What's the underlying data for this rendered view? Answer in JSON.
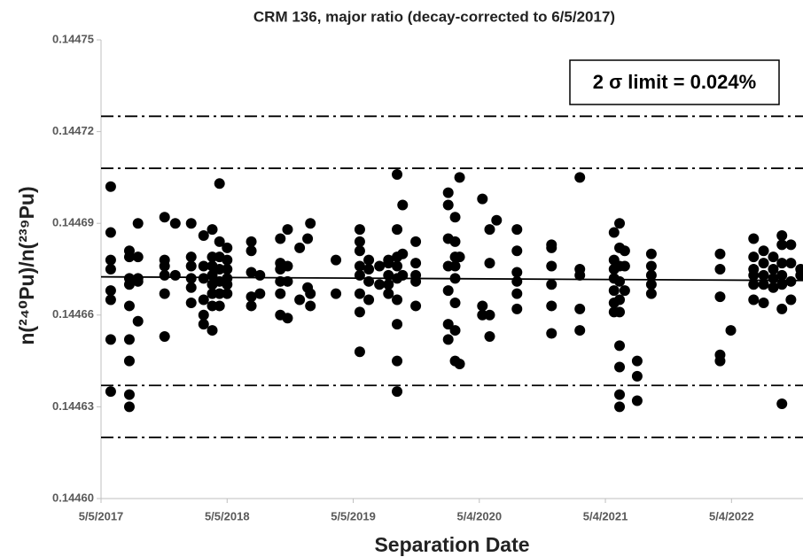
{
  "chart_data": {
    "type": "scatter",
    "title": "CRM 136, major ratio (decay-corrected to 6/5/2017)",
    "xlabel": "Separation Date",
    "ylabel": "n(²⁴⁰Pu)/n(²³⁹Pu)",
    "annotation": "2 σ limit = 0.024%",
    "color": "#000000",
    "xlim": [
      "2017-05-05",
      "2022-11-27"
    ],
    "xticks": [
      {
        "value": "2017-05-05",
        "label": "5/5/2017"
      },
      {
        "value": "2018-05-05",
        "label": "5/5/2018"
      },
      {
        "value": "2019-05-05",
        "label": "5/5/2019"
      },
      {
        "value": "2020-05-04",
        "label": "5/4/2020"
      },
      {
        "value": "2021-05-04",
        "label": "5/4/2021"
      },
      {
        "value": "2022-05-04",
        "label": "5/4/2022"
      }
    ],
    "ylim": [
      0.1446,
      0.14475
    ],
    "yticks": [
      {
        "value": 0.1446,
        "label": "0.14460"
      },
      0.14463,
      0.14466,
      0.14469,
      0.14472,
      0.14475
    ],
    "reference_lines": [
      0.144725,
      0.144708,
      0.144637,
      0.14462
    ],
    "trend_values": [
      0.1446725,
      0.1446713
    ],
    "x": [
      "2017-06-02",
      "2017-06-02",
      "2017-06-02",
      "2017-06-02",
      "2017-06-02",
      "2017-06-02",
      "2017-06-02",
      "2017-06-02",
      "2017-07-26",
      "2017-07-26",
      "2017-07-26",
      "2017-07-26",
      "2017-07-26",
      "2017-07-26",
      "2017-07-26",
      "2017-07-26",
      "2017-07-26",
      "2017-08-20",
      "2017-08-20",
      "2017-08-20",
      "2017-08-20",
      "2017-08-20",
      "2017-11-05",
      "2017-11-05",
      "2017-11-05",
      "2017-11-05",
      "2017-11-05",
      "2017-11-05",
      "2017-12-06",
      "2017-12-06",
      "2018-01-21",
      "2018-01-21",
      "2018-01-21",
      "2018-01-21",
      "2018-01-21",
      "2018-01-21",
      "2018-02-26",
      "2018-02-26",
      "2018-02-26",
      "2018-02-26",
      "2018-02-26",
      "2018-02-26",
      "2018-03-23",
      "2018-03-23",
      "2018-03-23",
      "2018-03-23",
      "2018-03-23",
      "2018-03-23",
      "2018-03-23",
      "2018-03-23",
      "2018-04-13",
      "2018-04-13",
      "2018-04-13",
      "2018-04-13",
      "2018-04-13",
      "2018-04-13",
      "2018-04-13",
      "2018-05-05",
      "2018-05-05",
      "2018-05-05",
      "2018-05-05",
      "2018-05-05",
      "2018-05-05",
      "2018-07-14",
      "2018-07-14",
      "2018-07-14",
      "2018-07-14",
      "2018-07-14",
      "2018-08-08",
      "2018-08-08",
      "2018-10-06",
      "2018-10-06",
      "2018-10-06",
      "2018-10-06",
      "2018-10-06",
      "2018-10-06",
      "2018-10-27",
      "2018-10-27",
      "2018-10-27",
      "2018-10-27",
      "2018-12-01",
      "2018-12-01",
      "2018-12-24",
      "2018-12-24",
      "2019-01-01",
      "2019-01-01",
      "2019-01-01",
      "2019-03-16",
      "2019-03-16",
      "2019-05-24",
      "2019-05-24",
      "2019-05-24",
      "2019-05-24",
      "2019-05-24",
      "2019-05-24",
      "2019-05-24",
      "2019-05-24",
      "2019-06-19",
      "2019-06-19",
      "2019-06-19",
      "2019-06-19",
      "2019-07-20",
      "2019-07-20",
      "2019-08-15",
      "2019-08-15",
      "2019-08-15",
      "2019-08-15",
      "2019-08-15",
      "2019-09-09",
      "2019-09-09",
      "2019-09-09",
      "2019-09-09",
      "2019-09-09",
      "2019-09-09",
      "2019-09-09",
      "2019-09-09",
      "2019-09-09",
      "2019-09-25",
      "2019-09-25",
      "2019-09-25",
      "2019-11-02",
      "2019-11-02",
      "2019-11-02",
      "2019-11-02",
      "2019-11-02",
      "2020-02-04",
      "2020-02-04",
      "2020-02-04",
      "2020-02-04",
      "2020-02-04",
      "2020-02-04",
      "2020-02-04",
      "2020-02-24",
      "2020-02-24",
      "2020-02-24",
      "2020-02-24",
      "2020-02-24",
      "2020-02-24",
      "2020-02-24",
      "2020-02-24",
      "2020-03-08",
      "2020-03-08",
      "2020-03-08",
      "2020-05-13",
      "2020-05-13",
      "2020-05-13",
      "2020-06-03",
      "2020-06-03",
      "2020-06-03",
      "2020-06-03",
      "2020-06-23",
      "2020-08-21",
      "2020-08-21",
      "2020-08-21",
      "2020-08-21",
      "2020-08-21",
      "2020-08-21",
      "2020-11-29",
      "2020-11-29",
      "2020-11-29",
      "2020-11-29",
      "2020-11-29",
      "2020-11-29",
      "2021-02-19",
      "2021-02-19",
      "2021-02-19",
      "2021-02-19",
      "2021-02-19",
      "2021-05-29",
      "2021-05-29",
      "2021-05-29",
      "2021-05-29",
      "2021-05-29",
      "2021-05-29",
      "2021-05-29",
      "2021-06-14",
      "2021-06-14",
      "2021-06-14",
      "2021-06-14",
      "2021-06-14",
      "2021-06-14",
      "2021-06-14",
      "2021-06-14",
      "2021-06-14",
      "2021-06-14",
      "2021-06-29",
      "2021-06-29",
      "2021-06-29",
      "2021-08-04",
      "2021-08-04",
      "2021-08-04",
      "2021-09-14",
      "2021-09-14",
      "2021-09-14",
      "2021-09-14",
      "2021-09-14",
      "2022-04-01",
      "2022-04-01",
      "2022-04-01",
      "2022-04-01",
      "2022-04-01",
      "2022-05-02",
      "2022-07-07",
      "2022-07-07",
      "2022-07-07",
      "2022-07-07",
      "2022-07-07",
      "2022-07-07",
      "2022-08-05",
      "2022-08-05",
      "2022-08-05",
      "2022-08-05",
      "2022-08-05",
      "2022-09-02",
      "2022-09-02",
      "2022-09-02",
      "2022-09-02",
      "2022-09-27",
      "2022-09-27",
      "2022-09-27",
      "2022-09-27",
      "2022-09-27",
      "2022-09-27",
      "2022-09-27",
      "2022-10-23",
      "2022-10-23",
      "2022-10-23",
      "2022-10-23",
      "2022-11-20",
      "2022-11-20"
    ],
    "values": [
      0.144702,
      0.144687,
      0.144678,
      0.144675,
      0.144668,
      0.144665,
      0.144652,
      0.144635,
      0.144681,
      0.144679,
      0.144672,
      0.14467,
      0.144663,
      0.144652,
      0.144645,
      0.144634,
      0.14463,
      0.14469,
      0.144679,
      0.144672,
      0.144671,
      0.144658,
      0.144692,
      0.144678,
      0.144676,
      0.144673,
      0.144667,
      0.144653,
      0.14469,
      0.144673,
      0.14469,
      0.144679,
      0.144676,
      0.144672,
      0.144669,
      0.144664,
      0.144686,
      0.144676,
      0.144672,
      0.144665,
      0.14466,
      0.144657,
      0.144688,
      0.144679,
      0.144676,
      0.144673,
      0.14467,
      0.144667,
      0.144663,
      0.144655,
      0.144703,
      0.144684,
      0.144679,
      0.144675,
      0.144671,
      0.144667,
      0.144663,
      0.144682,
      0.144678,
      0.144675,
      0.144672,
      0.14467,
      0.144667,
      0.144684,
      0.144681,
      0.144674,
      0.144666,
      0.144663,
      0.144673,
      0.144667,
      0.144685,
      0.144677,
      0.144675,
      0.144671,
      0.144667,
      0.14466,
      0.144688,
      0.144676,
      0.144671,
      0.144659,
      0.144682,
      0.144665,
      0.144685,
      0.144669,
      0.14469,
      0.144667,
      0.144663,
      0.144678,
      0.144667,
      0.144688,
      0.144684,
      0.144681,
      0.144676,
      0.144673,
      0.144667,
      0.144661,
      0.144648,
      0.144678,
      0.144675,
      0.144671,
      0.144665,
      0.144676,
      0.14467,
      0.144678,
      0.144677,
      0.144673,
      0.14467,
      0.144667,
      0.144706,
      0.144688,
      0.144679,
      0.144676,
      0.144672,
      0.144665,
      0.144657,
      0.144645,
      0.144635,
      0.144696,
      0.14468,
      0.144673,
      0.144684,
      0.144677,
      0.144673,
      0.144671,
      0.144663,
      0.1447,
      0.144696,
      0.144685,
      0.144676,
      0.144668,
      0.144657,
      0.144652,
      0.144692,
      0.144684,
      0.144679,
      0.144676,
      0.144672,
      0.144664,
      0.144655,
      0.144645,
      0.144705,
      0.144679,
      0.144644,
      0.144698,
      0.144663,
      0.14466,
      0.144688,
      0.144677,
      0.14466,
      0.144653,
      0.144691,
      0.144688,
      0.144681,
      0.144674,
      0.144671,
      0.144667,
      0.144662,
      0.144683,
      0.144682,
      0.144676,
      0.14467,
      0.144663,
      0.144654,
      0.144705,
      0.144675,
      0.144673,
      0.144662,
      0.144655,
      0.144687,
      0.144678,
      0.144675,
      0.144672,
      0.144668,
      0.144664,
      0.144661,
      0.14469,
      0.144682,
      0.144676,
      0.144671,
      0.144665,
      0.144661,
      0.14465,
      0.144643,
      0.144634,
      0.14463,
      0.144681,
      0.144676,
      0.144668,
      0.144645,
      0.14464,
      0.144632,
      0.14468,
      0.144676,
      0.144673,
      0.14467,
      0.144667,
      0.14468,
      0.144675,
      0.144666,
      0.144647,
      0.144645,
      0.144655,
      0.144685,
      0.144679,
      0.144675,
      0.144673,
      0.14467,
      0.144665,
      0.144681,
      0.144677,
      0.144673,
      0.14467,
      0.144664,
      0.144679,
      0.144675,
      0.144672,
      0.144669,
      0.144686,
      0.144683,
      0.144677,
      0.144673,
      0.14467,
      0.144662,
      0.144631,
      0.144683,
      0.144677,
      0.144671,
      0.144665,
      0.144675,
      0.144673
    ]
  }
}
